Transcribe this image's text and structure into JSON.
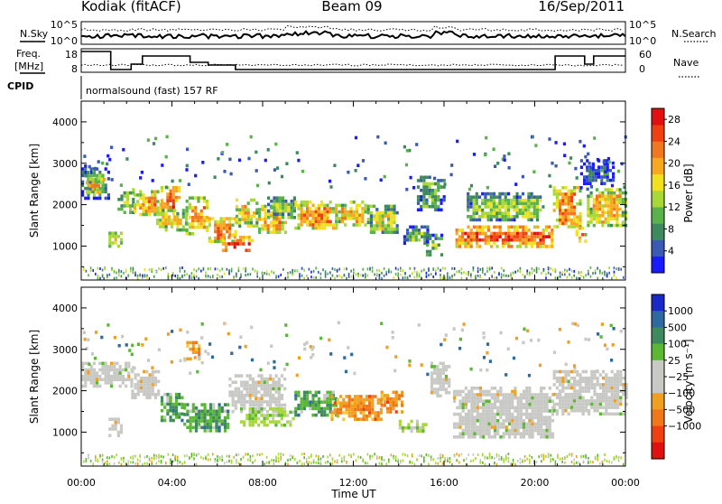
{
  "header": {
    "station": "Kodiak (fitACF)",
    "beam": "Beam 09",
    "date": "16/Sep/2011",
    "cpid_text": "normalsound (fast) 157 RF"
  },
  "strips": {
    "nsky": {
      "label": "N.Sky",
      "tick_top": "10^5",
      "tick_bottom": "10^0"
    },
    "nsearch": {
      "label": "N.Search",
      "tick_top": "10^5",
      "tick_bottom": "10^0"
    },
    "freq": {
      "label_1": "Freq.",
      "label_2": "[MHz]",
      "tick_top": "18",
      "tick_bottom": "8"
    },
    "nave": {
      "label": "Nave",
      "tick_top": "60",
      "tick_bottom": "0"
    },
    "cpid": {
      "label": "CPID"
    }
  },
  "chart_data": [
    {
      "type": "heatmap",
      "panel": "power",
      "title": "",
      "xlabel": "Time UT",
      "ylabel": "Slant Range [km]",
      "x_ticks": [
        "00:00",
        "04:00",
        "08:00",
        "12:00",
        "16:00",
        "20:00",
        "00:00"
      ],
      "y_ticks": [
        "1000",
        "2000",
        "3000",
        "4000"
      ],
      "xlim_hours": [
        0,
        24
      ],
      "ylim_km": [
        180,
        4500
      ],
      "colorbar": {
        "label": "Power [dB]",
        "tick_values": [
          "4",
          "8",
          "12",
          "16",
          "20",
          "24",
          "28"
        ],
        "range": [
          0,
          30
        ],
        "colors": [
          "#1a1aff",
          "#3a5ab4",
          "#3e8a5e",
          "#5ab24a",
          "#a8d838",
          "#f0e020",
          "#f8a820",
          "#f07820",
          "#ee4010",
          "#e01010"
        ]
      },
      "regions": [
        {
          "t": [
            0.0,
            1.2
          ],
          "r": [
            2150,
            2900
          ],
          "v": 10
        },
        {
          "t": [
            0.2,
            1.0
          ],
          "r": [
            2300,
            2650
          ],
          "v": 22
        },
        {
          "t": [
            1.2,
            1.8
          ],
          "r": [
            980,
            1350
          ],
          "v": 18
        },
        {
          "t": [
            1.6,
            2.3
          ],
          "r": [
            1800,
            2400
          ],
          "v": 14
        },
        {
          "t": [
            2.3,
            3.5
          ],
          "r": [
            1750,
            2350
          ],
          "v": 20
        },
        {
          "t": [
            3.5,
            4.3
          ],
          "r": [
            1800,
            2450
          ],
          "v": 24
        },
        {
          "t": [
            3.3,
            4.6
          ],
          "r": [
            1400,
            1900
          ],
          "v": 17
        },
        {
          "t": [
            4.6,
            5.6
          ],
          "r": [
            1300,
            2200
          ],
          "v": 20
        },
        {
          "t": [
            5.6,
            6.8
          ],
          "r": [
            1100,
            1700
          ],
          "v": 22
        },
        {
          "t": [
            6.2,
            7.6
          ],
          "r": [
            900,
            1250
          ],
          "v": 26
        },
        {
          "t": [
            6.8,
            7.8
          ],
          "r": [
            1500,
            2150
          ],
          "v": 18
        },
        {
          "t": [
            7.8,
            9.0
          ],
          "r": [
            1300,
            2000
          ],
          "v": 20
        },
        {
          "t": [
            8.2,
            9.4
          ],
          "r": [
            1700,
            2200
          ],
          "v": 14
        },
        {
          "t": [
            9.4,
            11.2
          ],
          "r": [
            1400,
            2100
          ],
          "v": 21
        },
        {
          "t": [
            11.2,
            12.6
          ],
          "r": [
            1500,
            2100
          ],
          "v": 18
        },
        {
          "t": [
            12.6,
            14.0
          ],
          "r": [
            1300,
            2000
          ],
          "v": 15
        },
        {
          "t": [
            14.2,
            15.3
          ],
          "r": [
            1050,
            1500
          ],
          "v": 12
        },
        {
          "t": [
            15.2,
            15.9
          ],
          "r": [
            800,
            1300
          ],
          "v": 12
        },
        {
          "t": [
            14.8,
            16.0
          ],
          "r": [
            1850,
            2700
          ],
          "v": 10
        },
        {
          "t": [
            16.5,
            20.8
          ],
          "r": [
            1000,
            1500
          ],
          "v": 24
        },
        {
          "t": [
            17.0,
            20.4
          ],
          "r": [
            1600,
            2300
          ],
          "v": 13
        },
        {
          "t": [
            20.8,
            22.0
          ],
          "r": [
            1450,
            2450
          ],
          "v": 21
        },
        {
          "t": [
            21.8,
            22.3
          ],
          "r": [
            1100,
            1550
          ],
          "v": 22
        },
        {
          "t": [
            22.3,
            24.0
          ],
          "r": [
            1500,
            2400
          ],
          "v": 18
        },
        {
          "t": [
            22.0,
            23.5
          ],
          "r": [
            2500,
            3100
          ],
          "v": 6
        }
      ]
    },
    {
      "type": "heatmap",
      "panel": "velocity",
      "title": "",
      "xlabel": "Time UT",
      "ylabel": "Slant Range [km]",
      "x_ticks": [
        "00:00",
        "04:00",
        "08:00",
        "12:00",
        "16:00",
        "20:00",
        "00:00"
      ],
      "y_ticks": [
        "1000",
        "2000",
        "3000",
        "4000"
      ],
      "xlim_hours": [
        0,
        24
      ],
      "ylim_km": [
        180,
        4500
      ],
      "colorbar": {
        "label": "Velocity [m s⁻¹]",
        "tick_values": [
          "1000",
          "500",
          "100",
          "25",
          "−25",
          "−100",
          "−500",
          "−1000"
        ],
        "colors": [
          "#1a28c8",
          "#2e6aa0",
          "#3e8a5e",
          "#5ab832",
          "#c8c8c4",
          "#c8c8c4",
          "#f0a020",
          "#f07818",
          "#ee4010",
          "#e01010"
        ]
      },
      "regions": [
        {
          "t": [
            0.0,
            2.2
          ],
          "r": [
            2100,
            2700
          ],
          "v": "ground"
        },
        {
          "t": [
            2.2,
            3.4
          ],
          "r": [
            1800,
            2500
          ],
          "v": "ground"
        },
        {
          "t": [
            1.2,
            1.8
          ],
          "r": [
            950,
            1350
          ],
          "v": "ground"
        },
        {
          "t": [
            3.5,
            4.5
          ],
          "r": [
            1300,
            1950
          ],
          "v": "pos"
        },
        {
          "t": [
            4.5,
            6.5
          ],
          "r": [
            1000,
            1700
          ],
          "v": "pos"
        },
        {
          "t": [
            6.5,
            9.0
          ],
          "r": [
            1500,
            2400
          ],
          "v": "ground"
        },
        {
          "t": [
            7.0,
            9.4
          ],
          "r": [
            1200,
            1600
          ],
          "v": "pos_light"
        },
        {
          "t": [
            9.4,
            11.2
          ],
          "r": [
            1450,
            2000
          ],
          "v": "pos"
        },
        {
          "t": [
            11.0,
            13.2
          ],
          "r": [
            1300,
            1900
          ],
          "v": "neg"
        },
        {
          "t": [
            13.2,
            14.2
          ],
          "r": [
            1500,
            2000
          ],
          "v": "neg"
        },
        {
          "t": [
            14.0,
            15.4
          ],
          "r": [
            1000,
            1300
          ],
          "v": "pos_light"
        },
        {
          "t": [
            15.4,
            16.2
          ],
          "r": [
            1900,
            2700
          ],
          "v": "ground"
        },
        {
          "t": [
            16.4,
            20.8
          ],
          "r": [
            850,
            2100
          ],
          "v": "ground"
        },
        {
          "t": [
            20.8,
            24.0
          ],
          "r": [
            1450,
            2500
          ],
          "v": "ground"
        },
        {
          "t": [
            4.5,
            5.2
          ],
          "r": [
            2800,
            3200
          ],
          "v": "neg"
        }
      ]
    }
  ]
}
